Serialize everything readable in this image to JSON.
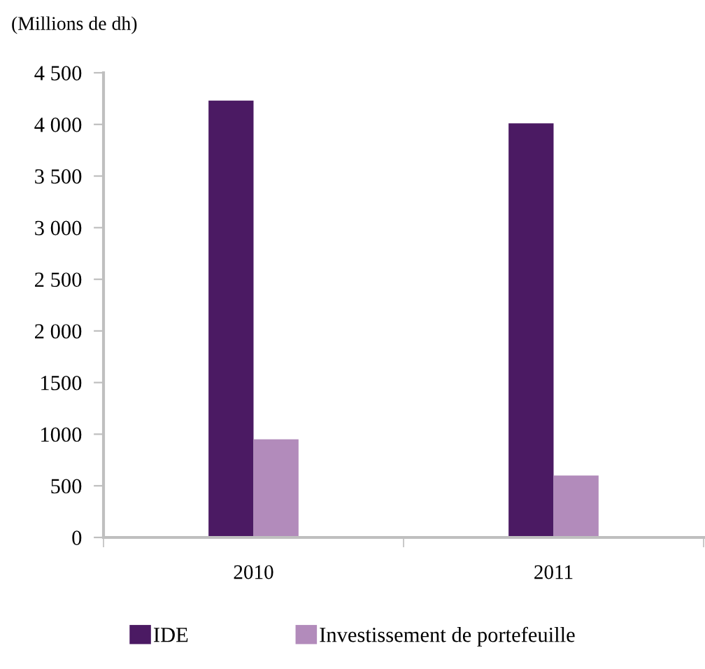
{
  "chart_data": {
    "type": "bar",
    "ylabel": "(Millions de dh)",
    "categories": [
      "2010",
      "2011"
    ],
    "series": [
      {
        "name": "IDE",
        "color": "#4b1a63",
        "values": [
          4230,
          4010
        ]
      },
      {
        "name": "Investissement de portefeuille",
        "color": "#b28bbb",
        "values": [
          950,
          600
        ]
      }
    ],
    "ylim": [
      0,
      4500
    ],
    "yticks": [
      0,
      500,
      {
        "value": 1000,
        "label": "1000"
      },
      {
        "value": 1500,
        "label": "1500"
      },
      {
        "value": 2000,
        "label": "2 000"
      },
      {
        "value": 2500,
        "label": "2 500"
      },
      {
        "value": 3000,
        "label": "3 000"
      },
      {
        "value": 3500,
        "label": "3 500"
      },
      {
        "value": 4000,
        "label": "4 000"
      },
      {
        "value": 4500,
        "label": "4 500"
      }
    ],
    "grid": false,
    "legend": "bottom"
  }
}
